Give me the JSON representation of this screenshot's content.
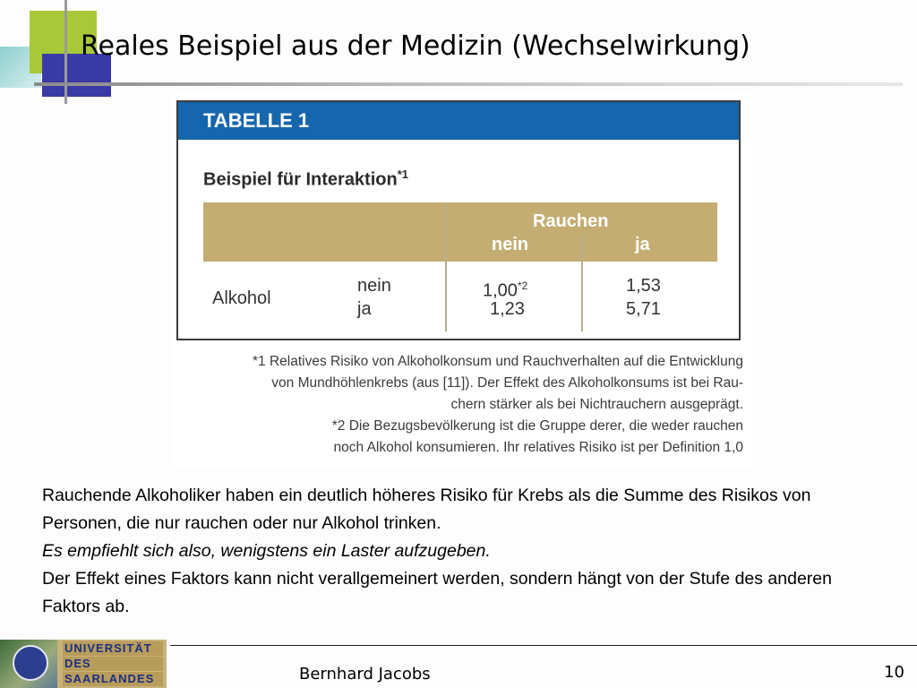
{
  "slide": {
    "title": "Reales Beispiel aus der Medizin (Wechselwirkung)"
  },
  "figure": {
    "table_label": "TABELLE 1",
    "table_title": "Beispiel für Interaktion",
    "table_title_note": "*1",
    "column_group": "Rauchen",
    "columns": [
      "nein",
      "ja"
    ],
    "row_group": "Alkohol",
    "rows": [
      {
        "label": "nein",
        "values": [
          "1,00",
          "1,53"
        ],
        "note": "*2"
      },
      {
        "label": "ja",
        "values": [
          "1,23",
          "5,71"
        ]
      }
    ],
    "footnote_1": "*1 Relatives Risiko von Alkoholkonsum und Rauchverhalten auf die Entwicklung von Mundhöhlenkrebs (aus [11]). Der Effekt des Alkoholkonsums ist bei Rauchern stärker als bei Nichtrauchern ausgeprägt.",
    "footnote_1_lines": [
      "*1 Relatives Risiko von Alkoholkonsum und Rauchverhalten auf die Entwicklung",
      "von Mundhöhlenkrebs (aus [11]). Der Effekt des Alkoholkonsums ist bei Rau-",
      "chern stärker als bei Nichtrauchern ausgeprägt."
    ],
    "footnote_2_lines": [
      "*2 Die Bezugsbevölkerung ist die Gruppe derer, die weder rauchen",
      "noch Alkohol konsumieren. Ihr relatives Risiko ist per Definition 1,0"
    ]
  },
  "body": {
    "paragraph_1": "Rauchende Alkoholiker haben ein deutlich höheres Risiko für Krebs als die Summe des Risikos von Personen, die nur rauchen oder nur Alkohol trinken.",
    "paragraph_2": "Es empfiehlt sich also, wenigstens ein Laster aufzugeben.",
    "paragraph_3": "Der Effekt eines Faktors kann nicht verallgemeinert werden, sondern hängt von der Stufe des anderen Faktors ab."
  },
  "footer": {
    "logo_lines": [
      "UNIVERSITÄT",
      "DES",
      "SAARLANDES"
    ],
    "author": "Bernhard Jacobs",
    "page_number": "10"
  },
  "colors": {
    "table_header": "#1666ad",
    "table_band": "#c3ad72",
    "deco_green": "#a8c83a",
    "deco_blue": "#3a3aa6"
  }
}
